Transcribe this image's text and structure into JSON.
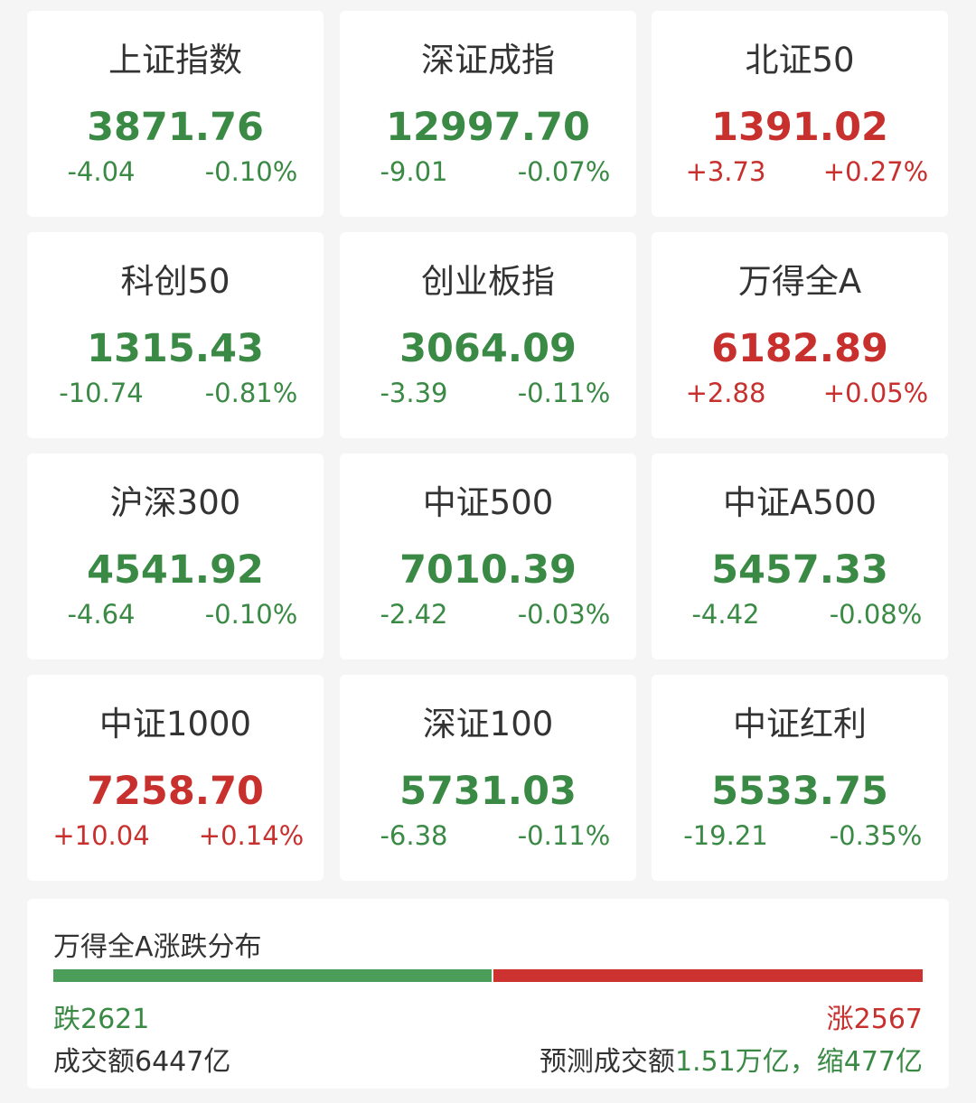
{
  "colors": {
    "up": "#c8302e",
    "down": "#3a8a45",
    "bar_down": "#4a9e5a",
    "bar_up": "#cc3330"
  },
  "indices": [
    {
      "name": "上证指数",
      "value": "3871.76",
      "change": "-4.04",
      "pct": "-0.10%",
      "dir": "down"
    },
    {
      "name": "深证成指",
      "value": "12997.70",
      "change": "-9.01",
      "pct": "-0.07%",
      "dir": "down"
    },
    {
      "name": "北证50",
      "value": "1391.02",
      "change": "+3.73",
      "pct": "+0.27%",
      "dir": "up"
    },
    {
      "name": "科创50",
      "value": "1315.43",
      "change": "-10.74",
      "pct": "-0.81%",
      "dir": "down"
    },
    {
      "name": "创业板指",
      "value": "3064.09",
      "change": "-3.39",
      "pct": "-0.11%",
      "dir": "down"
    },
    {
      "name": "万得全A",
      "value": "6182.89",
      "change": "+2.88",
      "pct": "+0.05%",
      "dir": "up"
    },
    {
      "name": "沪深300",
      "value": "4541.92",
      "change": "-4.64",
      "pct": "-0.10%",
      "dir": "down"
    },
    {
      "name": "中证500",
      "value": "7010.39",
      "change": "-2.42",
      "pct": "-0.03%",
      "dir": "down"
    },
    {
      "name": "中证A500",
      "value": "5457.33",
      "change": "-4.42",
      "pct": "-0.08%",
      "dir": "down"
    },
    {
      "name": "中证1000",
      "value": "7258.70",
      "change": "+10.04",
      "pct": "+0.14%",
      "dir": "up"
    },
    {
      "name": "深证100",
      "value": "5731.03",
      "change": "-6.38",
      "pct": "-0.11%",
      "dir": "down"
    },
    {
      "name": "中证红利",
      "value": "5533.75",
      "change": "-19.21",
      "pct": "-0.35%",
      "dir": "down"
    }
  ],
  "breadth": {
    "title": "万得全A涨跌分布",
    "fall_label": "跌2621",
    "rise_label": "涨2567",
    "fall_count": 2621,
    "rise_count": 2567,
    "turnover": "成交额6447亿",
    "forecast_label": "预测成交额",
    "forecast_value": "1.51万亿，缩477亿"
  }
}
